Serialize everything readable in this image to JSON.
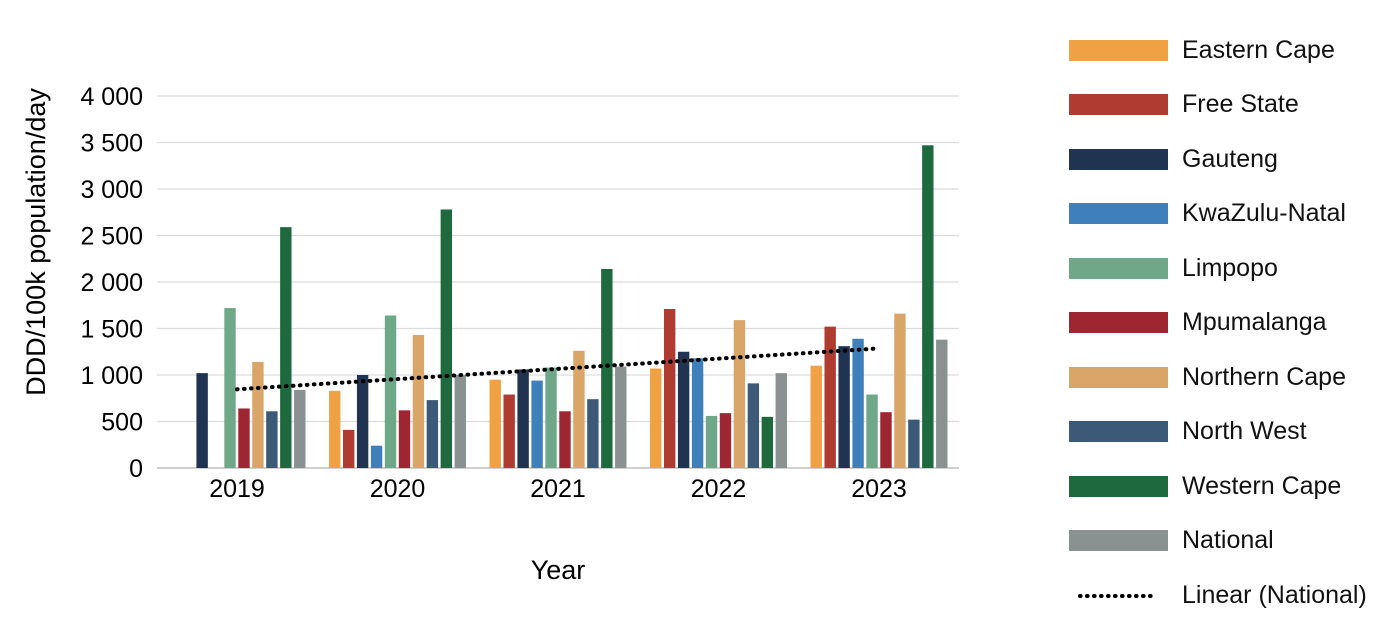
{
  "chart_data": {
    "type": "bar",
    "title": "",
    "xlabel": "Year",
    "ylabel": "DDD/100k population/day",
    "ylim": [
      0,
      4000
    ],
    "grid": true,
    "legend_position": "right",
    "gridline_color": "#DCDCDC",
    "axis_line_color": "#C0C0C0",
    "text_color": "#000000",
    "yticks": [
      {
        "value": 0,
        "label": "0"
      },
      {
        "value": 500,
        "label": "500"
      },
      {
        "value": 1000,
        "label": "1 000"
      },
      {
        "value": 1500,
        "label": "1 500"
      },
      {
        "value": 2000,
        "label": "2 000"
      },
      {
        "value": 2500,
        "label": "2 500"
      },
      {
        "value": 3000,
        "label": "3 000"
      },
      {
        "value": 3500,
        "label": "3 500"
      },
      {
        "value": 4000,
        "label": "4 000"
      }
    ],
    "categories": [
      "2019",
      "2020",
      "2021",
      "2022",
      "2023"
    ],
    "series": [
      {
        "name": "Eastern Cape",
        "color": "#F0A144",
        "values": [
          null,
          830,
          950,
          1070,
          1100
        ]
      },
      {
        "name": "Free State",
        "color": "#B03B31",
        "values": [
          null,
          410,
          790,
          1710,
          1520
        ]
      },
      {
        "name": "Gauteng",
        "color": "#203350",
        "values": [
          1020,
          1000,
          1060,
          1250,
          1310
        ]
      },
      {
        "name": "KwaZulu-Natal",
        "color": "#3F80BA",
        "values": [
          null,
          240,
          940,
          1180,
          1390
        ]
      },
      {
        "name": "Limpopo",
        "color": "#6FA888",
        "values": [
          1720,
          1640,
          1080,
          560,
          790
        ]
      },
      {
        "name": "Mpumalanga",
        "color": "#9E2532",
        "values": [
          640,
          620,
          610,
          590,
          600
        ]
      },
      {
        "name": "Northern Cape",
        "color": "#D9A569",
        "values": [
          1140,
          1430,
          1260,
          1590,
          1660
        ]
      },
      {
        "name": "North West",
        "color": "#3C5A78",
        "values": [
          610,
          730,
          740,
          910,
          520
        ]
      },
      {
        "name": "Western Cape",
        "color": "#1E6A3E",
        "values": [
          2590,
          2780,
          2140,
          550,
          3470
        ]
      },
      {
        "name": "National",
        "color": "#899290",
        "values": [
          840,
          1000,
          1090,
          1020,
          1380
        ]
      }
    ],
    "trendline": {
      "name": "Linear (National)",
      "basis_series": "National",
      "style": "dotted",
      "color": "#000000",
      "values": [
        846,
        956,
        1066,
        1176,
        1286
      ]
    }
  }
}
